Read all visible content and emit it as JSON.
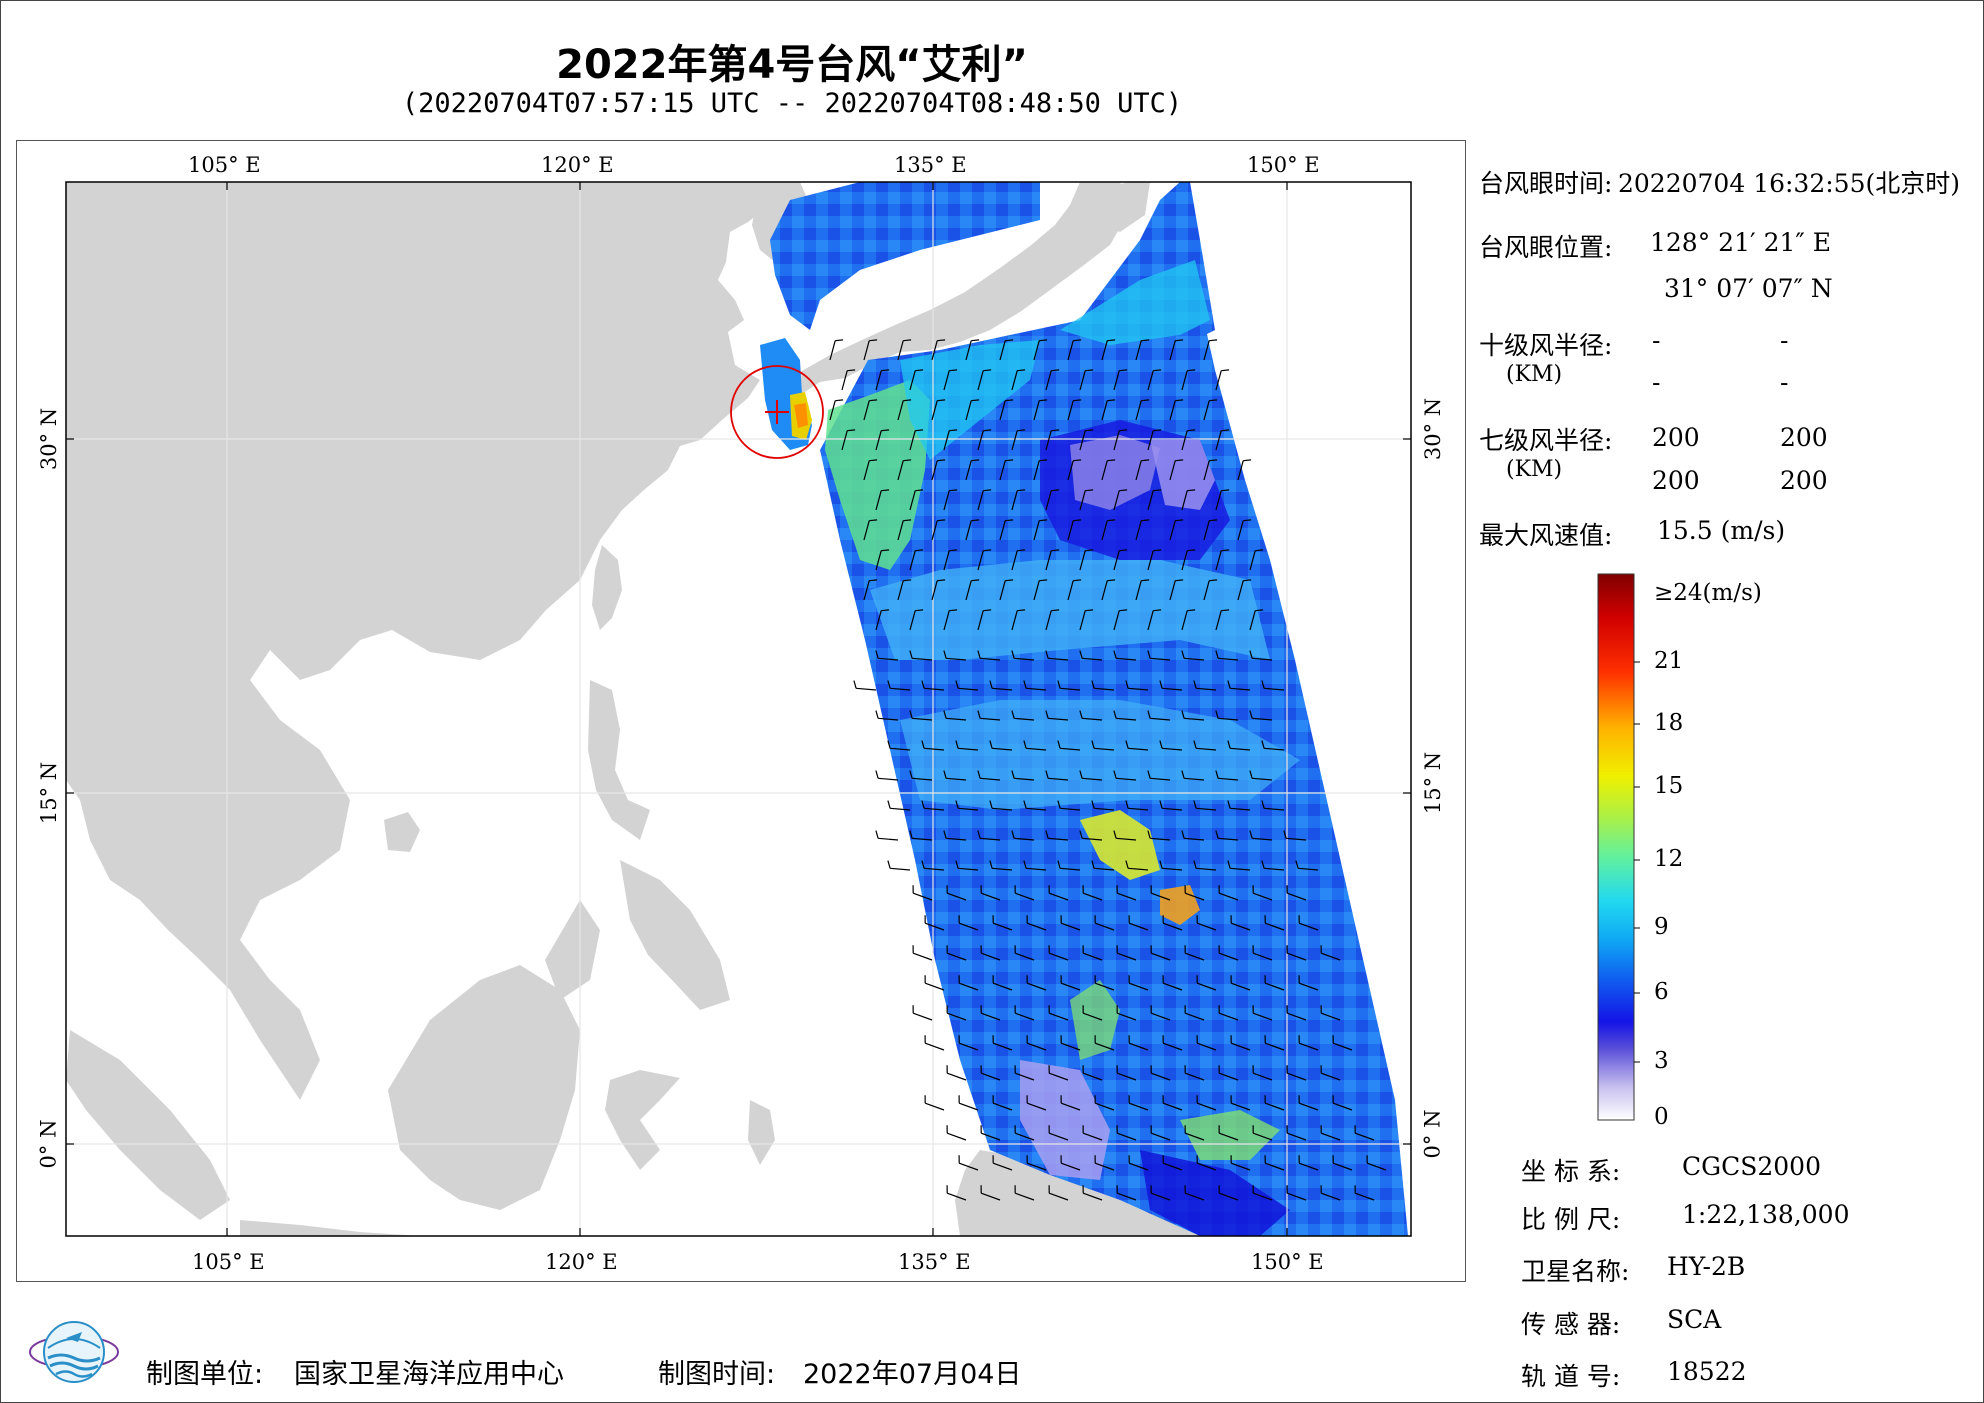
{
  "header": {
    "title": "2022年第4号台风“艾利”",
    "subtitle": "(20220704T07:57:15 UTC -- 20220704T08:48:50 UTC)"
  },
  "axes": {
    "lon_ticks": [
      "105° E",
      "120° E",
      "135° E",
      "150° E"
    ],
    "lat_ticks": [
      "30° N",
      "15° N",
      "0° N"
    ]
  },
  "info": {
    "eye_time_label": "台风眼时间:",
    "eye_time_value": "20220704 16:32:55(北京时)",
    "eye_pos_label": "台风眼位置:",
    "eye_lon": "128° 21′ 21″ E",
    "eye_lat": "31° 07′ 07″ N",
    "r10_label": "十级风半径:",
    "r10_unit": "(KM)",
    "r10_values": [
      "-",
      "-",
      "-",
      "-"
    ],
    "r7_label": "七级风半径:",
    "r7_unit": "(KM)",
    "r7_values": [
      "200",
      "200",
      "200",
      "200"
    ],
    "max_wind_label": "最大风速值:",
    "max_wind_value": "15.5  (m/s)"
  },
  "colorbar": {
    "labels": [
      "≥24(m/s)",
      "21",
      "18",
      "15",
      "12",
      "9",
      "6",
      "3",
      "0"
    ]
  },
  "meta": {
    "coord_label": "坐 标 系:",
    "coord_value": "CGCS2000",
    "scale_label": "比 例 尺:",
    "scale_value": "1:22,138,000",
    "sat_label": "卫星名称:",
    "sat_value": "HY-2B",
    "sensor_label": "传 感 器:",
    "sensor_value": "SCA",
    "orbit_label": "轨 道 号:",
    "orbit_value": "18522"
  },
  "footer": {
    "maker_label": "制图单位:",
    "maker_value": "国家卫星海洋应用中心",
    "date_label": "制图时间:",
    "date_value": "2022年07月04日"
  },
  "colors": {
    "land": "#d3d3d3",
    "grid": "#e6e6e6",
    "typhoon_circle": "#e00000",
    "typhoon_cross": "#e00000"
  }
}
